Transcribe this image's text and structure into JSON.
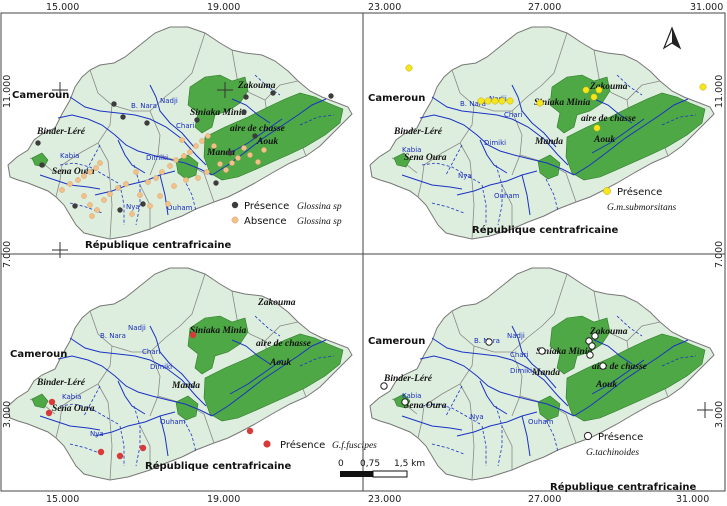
{
  "axis": {
    "top_ticks": [
      "15.000",
      "19.000",
      "23.000",
      "27.000",
      "31.000"
    ],
    "bottom_ticks": [
      "15.000",
      "19.000",
      "23.000",
      "27.000",
      "31.000"
    ],
    "left_ticks": [
      "11.000",
      "7.000",
      "3.000"
    ],
    "right_ticks": [
      "11.000",
      "7.000",
      "3.000"
    ]
  },
  "places": {
    "cameroun": "Cameroun",
    "rca": "République centrafricaine",
    "binder": "Binder-Léré",
    "sena": "Sena Oura",
    "siniaka": "Siniaka Minia",
    "zakouma": "Zakouma",
    "aire": "aire de chasse",
    "aouk": "Aouk",
    "manda": "Manda"
  },
  "rivers": {
    "b_nara": "B. Nara",
    "nadji": "Nadji",
    "chari": "Chari",
    "dimiki": "Dimiki",
    "kabia": "Kabia",
    "nya": "Nya",
    "ouham": "Ouham"
  },
  "legends": {
    "p1_presence": "Présence",
    "p1_absence": "Absence",
    "p1_species": "Glossina sp",
    "p2_presence": "Présence",
    "p2_species": "G.m.submorsitans",
    "p3_presence": "Présence",
    "p3_species": "G.f.fuscipes",
    "p4_presence": "Présence",
    "p4_species": "G.tachinoides"
  },
  "scale_bar": {
    "labels": [
      "0",
      "0,75",
      "1,5 km"
    ]
  },
  "colors": {
    "land": "#deeede",
    "park": "#4ea845",
    "river": "#1a33c4",
    "border": "#777777",
    "presence_sp": "#3c3c3c",
    "absence_sp": "#f2c089",
    "presence_gm": "#f7e61e",
    "presence_gf": "#d83a3a",
    "presence_gt": "#ffffff"
  },
  "icons": [
    "north-arrow-icon"
  ]
}
